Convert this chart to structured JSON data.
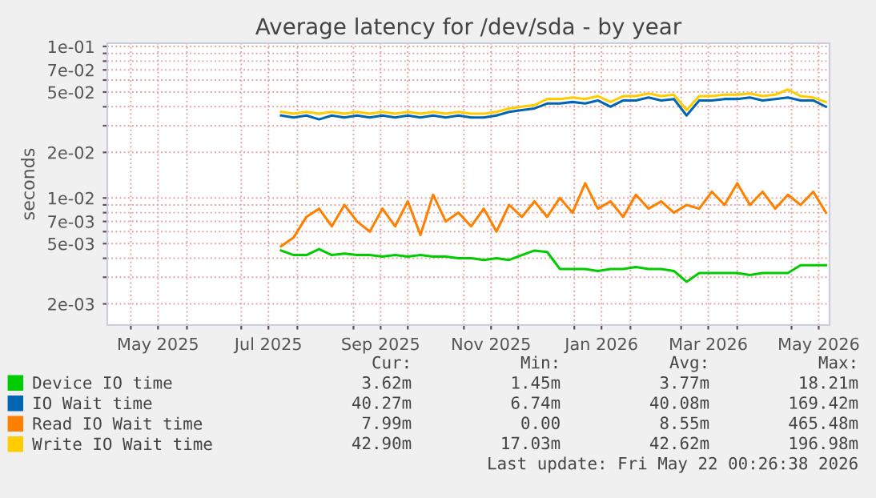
{
  "chart_data": {
    "type": "line",
    "title": "Average latency for /dev/sda - by year",
    "ylabel": "seconds",
    "log": "y",
    "grid": true,
    "legend": "bottom",
    "marker": "none",
    "line_style": "solid",
    "x": [
      "2025-07-23",
      "2025-07-30",
      "2025-08-06",
      "2025-08-13",
      "2025-08-20",
      "2025-08-27",
      "2025-09-03",
      "2025-09-10",
      "2025-09-17",
      "2025-09-24",
      "2025-10-01",
      "2025-10-08",
      "2025-10-15",
      "2025-10-22",
      "2025-10-29",
      "2025-11-05",
      "2025-11-12",
      "2025-11-19",
      "2025-11-26",
      "2025-12-03",
      "2025-12-10",
      "2025-12-17",
      "2025-12-24",
      "2025-12-31",
      "2026-01-07",
      "2026-01-14",
      "2026-01-21",
      "2026-01-28",
      "2026-02-04",
      "2026-02-11",
      "2026-02-18",
      "2026-02-25",
      "2026-03-04",
      "2026-03-11",
      "2026-03-18",
      "2026-03-25",
      "2026-04-01",
      "2026-04-08",
      "2026-04-15",
      "2026-04-22",
      "2026-04-29",
      "2026-05-06",
      "2026-05-13",
      "2026-05-20"
    ],
    "series": [
      {
        "name": "Device IO time",
        "color": "#00cc00",
        "values": [
          0.0045,
          0.0042,
          0.0042,
          0.0046,
          0.0042,
          0.0043,
          0.0042,
          0.0042,
          0.0041,
          0.0042,
          0.0041,
          0.0042,
          0.0041,
          0.0041,
          0.004,
          0.004,
          0.0039,
          0.004,
          0.0039,
          0.0042,
          0.0045,
          0.0044,
          0.0034,
          0.0034,
          0.0034,
          0.0033,
          0.0034,
          0.0034,
          0.0035,
          0.0034,
          0.0034,
          0.0033,
          0.0028,
          0.0032,
          0.0032,
          0.0032,
          0.0032,
          0.0031,
          0.0032,
          0.0032,
          0.0032,
          0.0036,
          0.0036,
          0.0036
        ]
      },
      {
        "name": "IO Wait time",
        "color": "#0066b3",
        "values": [
          0.035,
          0.034,
          0.035,
          0.033,
          0.035,
          0.034,
          0.035,
          0.034,
          0.035,
          0.034,
          0.035,
          0.034,
          0.035,
          0.034,
          0.035,
          0.034,
          0.034,
          0.035,
          0.037,
          0.038,
          0.039,
          0.042,
          0.042,
          0.043,
          0.042,
          0.044,
          0.04,
          0.044,
          0.044,
          0.046,
          0.044,
          0.045,
          0.035,
          0.044,
          0.044,
          0.045,
          0.045,
          0.046,
          0.044,
          0.045,
          0.046,
          0.044,
          0.044,
          0.04
        ]
      },
      {
        "name": "Read IO Wait time",
        "color": "#ff8000",
        "values": [
          0.0048,
          0.0055,
          0.0075,
          0.0085,
          0.0065,
          0.009,
          0.007,
          0.006,
          0.0085,
          0.0065,
          0.0095,
          0.0057,
          0.0105,
          0.007,
          0.008,
          0.0065,
          0.0085,
          0.006,
          0.009,
          0.0075,
          0.0095,
          0.0075,
          0.01,
          0.008,
          0.0125,
          0.0085,
          0.0095,
          0.0075,
          0.0105,
          0.0085,
          0.0095,
          0.008,
          0.009,
          0.0085,
          0.011,
          0.009,
          0.0125,
          0.009,
          0.011,
          0.0085,
          0.0105,
          0.009,
          0.011,
          0.008
        ]
      },
      {
        "name": "Write IO Wait time",
        "color": "#ffcc00",
        "values": [
          0.037,
          0.036,
          0.037,
          0.036,
          0.037,
          0.036,
          0.037,
          0.036,
          0.037,
          0.036,
          0.037,
          0.036,
          0.037,
          0.036,
          0.037,
          0.036,
          0.036,
          0.037,
          0.039,
          0.04,
          0.041,
          0.045,
          0.045,
          0.046,
          0.045,
          0.047,
          0.043,
          0.047,
          0.047,
          0.049,
          0.047,
          0.048,
          0.038,
          0.047,
          0.047,
          0.048,
          0.048,
          0.049,
          0.047,
          0.048,
          0.052,
          0.047,
          0.046,
          0.043
        ]
      }
    ],
    "xlim": [
      "2025-04-18",
      "2026-05-22"
    ],
    "xticks": [
      {
        "value": "2025-05-01",
        "label": null
      },
      {
        "value": "2025-05-16",
        "label": "May 2025"
      },
      {
        "value": "2025-06-01",
        "label": null
      },
      {
        "value": "2025-07-01",
        "label": null
      },
      {
        "value": "2025-07-16",
        "label": "Jul 2025"
      },
      {
        "value": "2025-08-01",
        "label": null
      },
      {
        "value": "2025-09-01",
        "label": null
      },
      {
        "value": "2025-09-16",
        "label": "Sep 2025"
      },
      {
        "value": "2025-10-01",
        "label": null
      },
      {
        "value": "2025-11-01",
        "label": null
      },
      {
        "value": "2025-11-16",
        "label": "Nov 2025"
      },
      {
        "value": "2025-12-01",
        "label": null
      },
      {
        "value": "2026-01-01",
        "label": null
      },
      {
        "value": "2026-01-16",
        "label": "Jan 2026"
      },
      {
        "value": "2026-02-01",
        "label": null
      },
      {
        "value": "2026-03-01",
        "label": null
      },
      {
        "value": "2026-03-16",
        "label": "Mar 2026"
      },
      {
        "value": "2026-04-01",
        "label": null
      },
      {
        "value": "2026-05-01",
        "label": null
      },
      {
        "value": "2026-05-16",
        "label": "May 2026"
      }
    ],
    "ylim": [
      0.00145,
      0.105
    ],
    "yticks": [
      {
        "value": 0.002,
        "label": "2e-03"
      },
      {
        "value": 0.003,
        "label": null
      },
      {
        "value": 0.004,
        "label": null
      },
      {
        "value": 0.005,
        "label": "5e-03"
      },
      {
        "value": 0.006,
        "label": null
      },
      {
        "value": 0.007,
        "label": "7e-03"
      },
      {
        "value": 0.008,
        "label": null
      },
      {
        "value": 0.009,
        "label": null
      },
      {
        "value": 0.01,
        "label": "1e-02"
      },
      {
        "value": 0.02,
        "label": "2e-02"
      },
      {
        "value": 0.03,
        "label": null
      },
      {
        "value": 0.04,
        "label": null
      },
      {
        "value": 0.05,
        "label": "5e-02"
      },
      {
        "value": 0.06,
        "label": null
      },
      {
        "value": 0.07,
        "label": "7e-02"
      },
      {
        "value": 0.08,
        "label": null
      },
      {
        "value": 0.09,
        "label": null
      },
      {
        "value": 0.1,
        "label": "1e-01"
      }
    ],
    "annotations": [
      "Cur:",
      "Min:",
      "Avg:",
      "Max:",
      "3.62m",
      "1.45m",
      "3.77m",
      "18.21m",
      "40.27m",
      "6.74m",
      "40.08m",
      "169.42m",
      "7.99m",
      "0.00",
      "8.55m",
      "465.48m",
      "42.90m",
      "17.03m",
      "42.62m",
      "196.98m",
      "Last update: Fri May 22 00:26:38 2026"
    ]
  }
}
